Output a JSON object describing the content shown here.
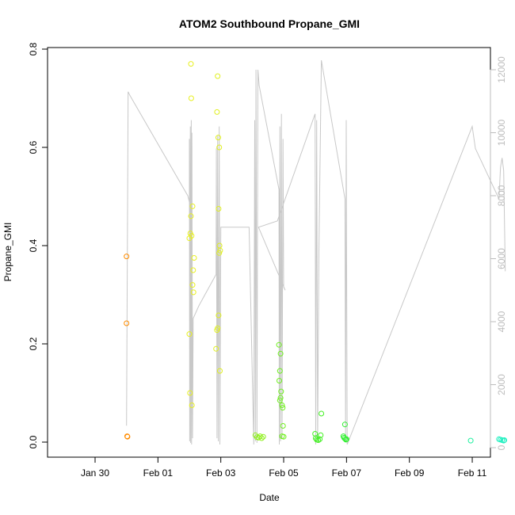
{
  "chart_data": {
    "type": "scatter",
    "title": "ATOM2 Southbound Propane_GMI",
    "xlabel": "Date",
    "ylabel": "Propane_GMI",
    "x_ticks": [
      "Jan 30",
      "Feb 01",
      "Feb 03",
      "Feb 05",
      "Feb 07",
      "Feb 09",
      "Feb 11"
    ],
    "y_ticks": [
      "0.0",
      "0.2",
      "0.4",
      "0.6",
      "0.8"
    ],
    "y2_ticks": [
      "0",
      "2000",
      "4000",
      "6000",
      "8000",
      "10000",
      "12000"
    ],
    "ylim": [
      0,
      0.8
    ],
    "y2lim": [
      0,
      12000
    ],
    "colors": {
      "line": "#c8c8c8",
      "right_axis": "#bdbdbd"
    },
    "propane_points": [
      {
        "day": -1.0,
        "value": 0.378,
        "color": "#ff8c00"
      },
      {
        "day": -1.0,
        "value": 0.242,
        "color": "#ff8c00"
      },
      {
        "day": -0.98,
        "value": 0.012,
        "color": "#ff8c00"
      },
      {
        "day": -0.97,
        "value": 0.011,
        "color": "#ff8c00"
      },
      {
        "day": 1.05,
        "value": 0.77,
        "color": "#e8f020"
      },
      {
        "day": 1.06,
        "value": 0.7,
        "color": "#e8f020"
      },
      {
        "day": 1.0,
        "value": 0.22,
        "color": "#e8f020"
      },
      {
        "day": 1.02,
        "value": 0.1,
        "color": "#e8f020"
      },
      {
        "day": 1.08,
        "value": 0.075,
        "color": "#e8f020"
      },
      {
        "day": 1.05,
        "value": 0.46,
        "color": "#e8f020"
      },
      {
        "day": 1.1,
        "value": 0.48,
        "color": "#e8f020"
      },
      {
        "day": 1.07,
        "value": 0.42,
        "color": "#e8f020"
      },
      {
        "day": 1.15,
        "value": 0.375,
        "color": "#e8f020"
      },
      {
        "day": 1.12,
        "value": 0.35,
        "color": "#e8f020"
      },
      {
        "day": 1.1,
        "value": 0.32,
        "color": "#e8f020"
      },
      {
        "day": 1.13,
        "value": 0.305,
        "color": "#e8f020"
      },
      {
        "day": 1.03,
        "value": 0.425,
        "color": "#e8f020"
      },
      {
        "day": 1.0,
        "value": 0.415,
        "color": "#e8f020"
      },
      {
        "day": 1.9,
        "value": 0.745,
        "color": "#e0f020"
      },
      {
        "day": 1.88,
        "value": 0.672,
        "color": "#e0f020"
      },
      {
        "day": 1.92,
        "value": 0.62,
        "color": "#e0f020"
      },
      {
        "day": 1.95,
        "value": 0.6,
        "color": "#e0f020"
      },
      {
        "day": 1.93,
        "value": 0.475,
        "color": "#e0f020"
      },
      {
        "day": 1.96,
        "value": 0.4,
        "color": "#e0f020"
      },
      {
        "day": 1.98,
        "value": 0.39,
        "color": "#e0f020"
      },
      {
        "day": 1.95,
        "value": 0.385,
        "color": "#e0f020"
      },
      {
        "day": 1.93,
        "value": 0.258,
        "color": "#e0f020"
      },
      {
        "day": 1.9,
        "value": 0.232,
        "color": "#e0f020"
      },
      {
        "day": 1.88,
        "value": 0.228,
        "color": "#e0f020"
      },
      {
        "day": 1.85,
        "value": 0.19,
        "color": "#e0f020"
      },
      {
        "day": 1.97,
        "value": 0.145,
        "color": "#e0f020"
      },
      {
        "day": 3.1,
        "value": 0.014,
        "color": "#90f020"
      },
      {
        "day": 3.15,
        "value": 0.01,
        "color": "#90f020"
      },
      {
        "day": 3.2,
        "value": 0.009,
        "color": "#90f020"
      },
      {
        "day": 3.25,
        "value": 0.012,
        "color": "#90f020"
      },
      {
        "day": 3.3,
        "value": 0.008,
        "color": "#90f020"
      },
      {
        "day": 3.35,
        "value": 0.011,
        "color": "#90f020"
      },
      {
        "day": 3.85,
        "value": 0.198,
        "color": "#70f020"
      },
      {
        "day": 3.9,
        "value": 0.18,
        "color": "#70f020"
      },
      {
        "day": 3.88,
        "value": 0.145,
        "color": "#70f020"
      },
      {
        "day": 3.86,
        "value": 0.125,
        "color": "#70f020"
      },
      {
        "day": 3.92,
        "value": 0.103,
        "color": "#70f020"
      },
      {
        "day": 3.9,
        "value": 0.09,
        "color": "#70f020"
      },
      {
        "day": 3.88,
        "value": 0.085,
        "color": "#70f020"
      },
      {
        "day": 3.95,
        "value": 0.075,
        "color": "#70f020"
      },
      {
        "day": 3.97,
        "value": 0.07,
        "color": "#70f020"
      },
      {
        "day": 3.98,
        "value": 0.033,
        "color": "#70f020"
      },
      {
        "day": 3.95,
        "value": 0.012,
        "color": "#70f020"
      },
      {
        "day": 4.0,
        "value": 0.011,
        "color": "#70f020"
      },
      {
        "day": 5.0,
        "value": 0.017,
        "color": "#40f020"
      },
      {
        "day": 5.02,
        "value": 0.008,
        "color": "#40f020"
      },
      {
        "day": 5.05,
        "value": 0.005,
        "color": "#40f020"
      },
      {
        "day": 5.1,
        "value": 0.004,
        "color": "#40f020"
      },
      {
        "day": 5.15,
        "value": 0.006,
        "color": "#40f020"
      },
      {
        "day": 5.2,
        "value": 0.058,
        "color": "#40f020"
      },
      {
        "day": 5.18,
        "value": 0.014,
        "color": "#40f020"
      },
      {
        "day": 5.95,
        "value": 0.036,
        "color": "#30f030"
      },
      {
        "day": 5.9,
        "value": 0.012,
        "color": "#30f030"
      },
      {
        "day": 5.92,
        "value": 0.009,
        "color": "#30f030"
      },
      {
        "day": 5.95,
        "value": 0.007,
        "color": "#30f030"
      },
      {
        "day": 5.98,
        "value": 0.005,
        "color": "#30f030"
      },
      {
        "day": 6.0,
        "value": 0.006,
        "color": "#30f030"
      },
      {
        "day": 9.95,
        "value": 0.003,
        "color": "#20f0a0"
      },
      {
        "day": 10.85,
        "value": 0.006,
        "color": "#20f0c0"
      },
      {
        "day": 10.9,
        "value": 0.005,
        "color": "#20f0c0"
      },
      {
        "day": 10.95,
        "value": 0.004,
        "color": "#20f0c0"
      },
      {
        "day": 11.0,
        "value": 0.003,
        "color": "#20f0c0"
      },
      {
        "day": 11.02,
        "value": 0.004,
        "color": "#20f0c0"
      }
    ],
    "altitude_line": [
      [
        -1.0,
        700
      ],
      [
        -0.95,
        11300
      ],
      [
        -0.9,
        11200
      ],
      [
        0.95,
        8000
      ],
      [
        1.0,
        7800
      ],
      [
        1.0,
        9800
      ],
      [
        1.01,
        200
      ],
      [
        1.03,
        10200
      ],
      [
        1.04,
        150
      ],
      [
        1.06,
        10400
      ],
      [
        1.07,
        100
      ],
      [
        1.08,
        10000
      ],
      [
        1.1,
        300
      ],
      [
        1.12,
        4100
      ],
      [
        1.3,
        4500
      ],
      [
        1.85,
        5500
      ],
      [
        1.86,
        9500
      ],
      [
        1.88,
        300
      ],
      [
        1.9,
        9900
      ],
      [
        1.92,
        200
      ],
      [
        1.95,
        10200
      ],
      [
        1.97,
        100
      ],
      [
        2.0,
        7000
      ],
      [
        2.9,
        7000
      ],
      [
        3.05,
        100
      ],
      [
        3.08,
        10400
      ],
      [
        3.1,
        200
      ],
      [
        3.12,
        12000
      ],
      [
        3.15,
        150
      ],
      [
        3.18,
        12000
      ],
      [
        3.22,
        11500
      ],
      [
        3.85,
        8200
      ],
      [
        3.86,
        100
      ],
      [
        3.88,
        10200
      ],
      [
        3.9,
        200
      ],
      [
        3.93,
        10600
      ],
      [
        3.95,
        300
      ],
      [
        3.98,
        9800
      ],
      [
        4.0,
        5100
      ],
      [
        4.05,
        5000
      ],
      [
        3.2,
        7000
      ],
      [
        3.8,
        7200
      ],
      [
        5.0,
        10600
      ],
      [
        5.02,
        100
      ],
      [
        5.05,
        10400
      ],
      [
        5.08,
        200
      ],
      [
        5.12,
        6200
      ],
      [
        5.2,
        12300
      ],
      [
        5.95,
        7900
      ],
      [
        5.97,
        200
      ],
      [
        5.99,
        10400
      ],
      [
        6.0,
        6500
      ],
      [
        6.02,
        100
      ],
      [
        10.0,
        10200
      ],
      [
        10.1,
        9500
      ],
      [
        10.85,
        7900
      ],
      [
        10.9,
        8900
      ],
      [
        10.95,
        9200
      ],
      [
        11.0,
        8800
      ],
      [
        11.05,
        5600
      ]
    ]
  }
}
